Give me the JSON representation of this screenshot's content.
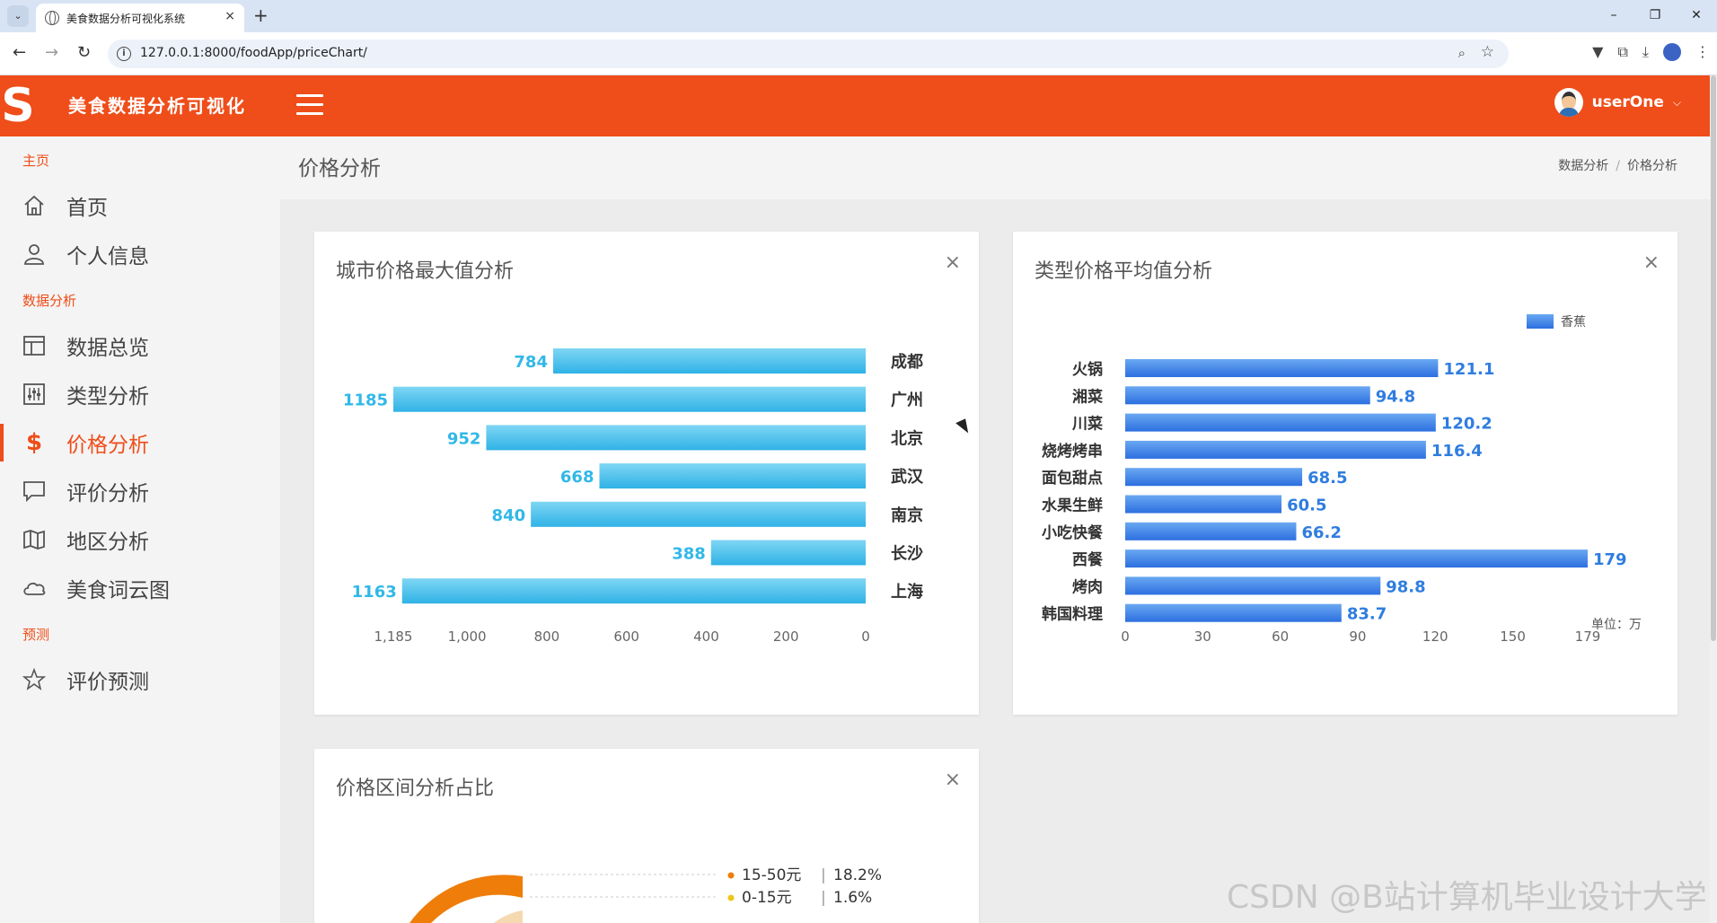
{
  "browser": {
    "tab_title": "美食数据分析可视化系统",
    "url": "127.0.0.1:8000/foodApp/priceChart/",
    "tab_close": "×",
    "new_tab": "+"
  },
  "header": {
    "brand": "美食数据分析可视化",
    "username": "userOne",
    "accent": "#ef4d19"
  },
  "sidebar": {
    "sections": [
      {
        "title": "主页",
        "items": [
          {
            "label": "首页",
            "icon": "home-icon"
          },
          {
            "label": "个人信息",
            "icon": "user-icon"
          }
        ]
      },
      {
        "title": "数据分析",
        "items": [
          {
            "label": "数据总览",
            "icon": "layout-icon"
          },
          {
            "label": "类型分析",
            "icon": "sliders-icon"
          },
          {
            "label": "价格分析",
            "icon": "dollar-icon",
            "active": true
          },
          {
            "label": "评价分析",
            "icon": "comment-icon"
          },
          {
            "label": "地区分析",
            "icon": "map-icon"
          },
          {
            "label": "美食词云图",
            "icon": "cloud-icon"
          }
        ]
      },
      {
        "title": "预测",
        "items": [
          {
            "label": "评价预测",
            "icon": "star-icon"
          }
        ]
      }
    ]
  },
  "page": {
    "title": "价格分析",
    "breadcrumb": [
      "数据分析",
      "价格分析"
    ]
  },
  "cards": {
    "city_max": {
      "title": "城市价格最大值分析",
      "close": "×"
    },
    "type_avg": {
      "title": "类型价格平均值分析",
      "close": "×"
    },
    "price_range": {
      "title": "价格区间分析占比",
      "close": "×"
    }
  },
  "watermark": "CSDN @B站计算机毕业设计大学",
  "chart_data": [
    {
      "type": "bar",
      "orientation": "horizontal",
      "categories": [
        "成都",
        "广州",
        "北京",
        "武汉",
        "南京",
        "长沙",
        "上海"
      ],
      "values": [
        784,
        1185,
        952,
        668,
        840,
        388,
        1163
      ],
      "x_ticks": [
        "1,185",
        "1,000",
        "800",
        "600",
        "400",
        "200",
        "0"
      ],
      "xlim": [
        0,
        1185
      ],
      "x_inverted": true,
      "color": "#31b8e8"
    },
    {
      "type": "bar",
      "orientation": "horizontal",
      "categories": [
        "火锅",
        "湘菜",
        "川菜",
        "烧烤烤串",
        "面包甜点",
        "水果生鲜",
        "小吃快餐",
        "西餐",
        "烤肉",
        "韩国料理"
      ],
      "series": [
        {
          "name": "香蕉",
          "values": [
            121.1,
            94.8,
            120.2,
            116.4,
            68.5,
            60.5,
            66.2,
            179,
            98.8,
            83.7
          ]
        }
      ],
      "x_ticks": [
        "0",
        "30",
        "60",
        "90",
        "120",
        "150",
        "179"
      ],
      "xlim": [
        0,
        179
      ],
      "unit_label": "单位：万",
      "legend": "top-right",
      "color": "#2f7de0"
    },
    {
      "type": "pie",
      "legend_entries": [
        {
          "label": "15-50元",
          "percent": "18.2%",
          "color": "#ef7d0a"
        },
        {
          "label": "0-15元",
          "percent": "1.6%",
          "color": "#f0c419"
        }
      ]
    }
  ]
}
